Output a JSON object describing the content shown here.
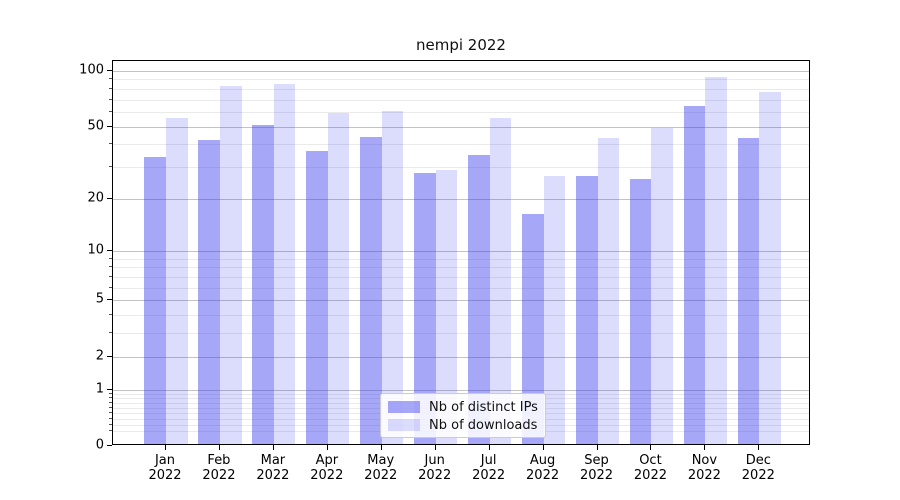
{
  "chart_data": {
    "type": "bar",
    "title": "nempi 2022",
    "categories": [
      "Jan 2022",
      "Feb 2022",
      "Mar 2022",
      "Apr 2022",
      "May 2022",
      "Jun 2022",
      "Jul 2022",
      "Aug 2022",
      "Sep 2022",
      "Oct 2022",
      "Nov 2022",
      "Dec 2022"
    ],
    "series": [
      {
        "name": "Nb of distinct IPs",
        "color": "#a6a6f7",
        "fill": "rgba(60,60,240,0.45)",
        "values": [
          33,
          41,
          50,
          36,
          43,
          27,
          34,
          16,
          26,
          25,
          63,
          42
        ]
      },
      {
        "name": "Nb of downloads",
        "color": "#dcdcfa",
        "fill": "rgba(60,60,240,0.18)",
        "values": [
          54,
          81,
          83,
          58,
          59,
          28,
          54,
          26,
          42,
          48,
          91,
          75
        ]
      }
    ],
    "xlabel": "",
    "ylabel": "",
    "yscale": "log10(value+1)",
    "ylim": [
      0,
      113
    ],
    "y_major_ticks": [
      100,
      50,
      20,
      10,
      5,
      2,
      1,
      0
    ],
    "y_minor_ticks": [
      0.2,
      0.3,
      0.4,
      0.5,
      0.6,
      0.7,
      0.8,
      0.9,
      3,
      4,
      6,
      7,
      8,
      9,
      30,
      40,
      60,
      70,
      80,
      90
    ],
    "grid": "both",
    "legend_position": "lower-center-inside"
  },
  "colors": {
    "background": "#ffffff",
    "axis": "#000000",
    "grid_major": "#c3c3c3",
    "grid_minor": "#eaeaea",
    "text": "#111111",
    "legend_border": "#cccccc"
  }
}
